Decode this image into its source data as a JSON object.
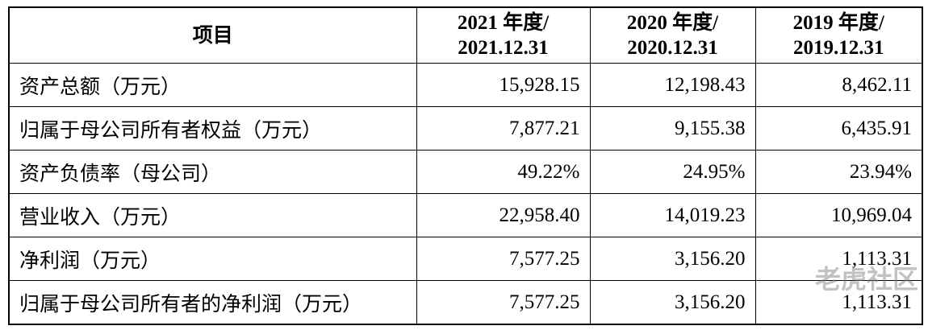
{
  "table": {
    "header": [
      "项目",
      [
        "2021 年度/",
        "2021.12.31"
      ],
      [
        "2020 年度/",
        "2020.12.31"
      ],
      [
        "2019 年度/",
        "2019.12.31"
      ]
    ],
    "rows": [
      [
        "资产总额（万元）",
        "15,928.15",
        "12,198.43",
        "8,462.11"
      ],
      [
        "归属于母公司所有者权益（万元）",
        "7,877.21",
        "9,155.38",
        "6,435.91"
      ],
      [
        "资产负债率（母公司）",
        "49.22%",
        "24.95%",
        "23.94%"
      ],
      [
        "营业收入（万元）",
        "22,958.40",
        "14,019.23",
        "10,969.04"
      ],
      [
        "净利润（万元）",
        "7,577.25",
        "3,156.20",
        "1,113.31"
      ],
      [
        "归属于母公司所有者的净利润（万元）",
        "7,577.25",
        "3,156.20",
        "1,113.31"
      ]
    ]
  },
  "watermark": "老虎社区"
}
